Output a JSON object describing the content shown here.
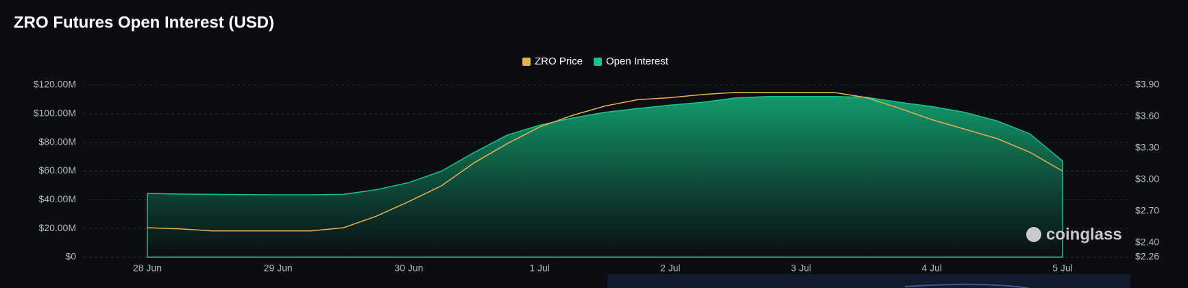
{
  "chart_data": {
    "type": "area",
    "title": "ZRO Futures Open Interest (USD)",
    "watermark": "coinglass",
    "categories": [
      "28 Jun",
      null,
      null,
      null,
      "29 Jun",
      null,
      null,
      null,
      "30 Jun",
      null,
      null,
      null,
      "1 Jul",
      null,
      null,
      null,
      "2 Jul",
      null,
      null,
      null,
      "3 Jul",
      null,
      null,
      null,
      "4 Jul",
      null,
      null,
      null,
      "5 Jul"
    ],
    "series": [
      {
        "name": "ZRO Price",
        "color": "#e8b04e",
        "axis": "y2",
        "values": [
          2.54,
          2.53,
          2.51,
          2.51,
          2.51,
          2.51,
          2.54,
          2.65,
          2.79,
          2.94,
          3.16,
          3.34,
          3.5,
          3.61,
          3.7,
          3.76,
          3.78,
          3.81,
          3.83,
          3.83,
          3.83,
          3.83,
          3.78,
          3.68,
          3.57,
          3.48,
          3.39,
          3.26,
          3.08
        ]
      },
      {
        "name": "Open Interest",
        "color": "#17c48a",
        "values": [
          44.4,
          44,
          43.8,
          43.6,
          43.5,
          43.5,
          43.8,
          47,
          52,
          60,
          73,
          85,
          92,
          97,
          101,
          103.6,
          106,
          108,
          111,
          112,
          112,
          112,
          111.5,
          108,
          105,
          101,
          95,
          86,
          67
        ]
      }
    ],
    "ylim": [
      0,
      120
    ],
    "yticks": [
      {
        "value": 0,
        "label": "$0"
      },
      {
        "value": 20,
        "label": "$20.00M"
      },
      {
        "value": 40,
        "label": "$40.00M"
      },
      {
        "value": 60,
        "label": "$60.00M"
      },
      {
        "value": 80,
        "label": "$80.00M"
      },
      {
        "value": 100,
        "label": "$100.00M"
      },
      {
        "value": 120,
        "label": "$120.00M"
      }
    ],
    "y2lim": [
      2.26,
      3.9
    ],
    "y2ticks": [
      {
        "value": 2.26,
        "label": "$2.26"
      },
      {
        "value": 2.4,
        "label": "$2.40"
      },
      {
        "value": 2.7,
        "label": "$2.70"
      },
      {
        "value": 3,
        "label": "$3.00"
      },
      {
        "value": 3.3,
        "label": "$3.30"
      },
      {
        "value": 3.6,
        "label": "$3.60"
      },
      {
        "value": 3.9,
        "label": "$3.90"
      }
    ],
    "grid": true
  }
}
